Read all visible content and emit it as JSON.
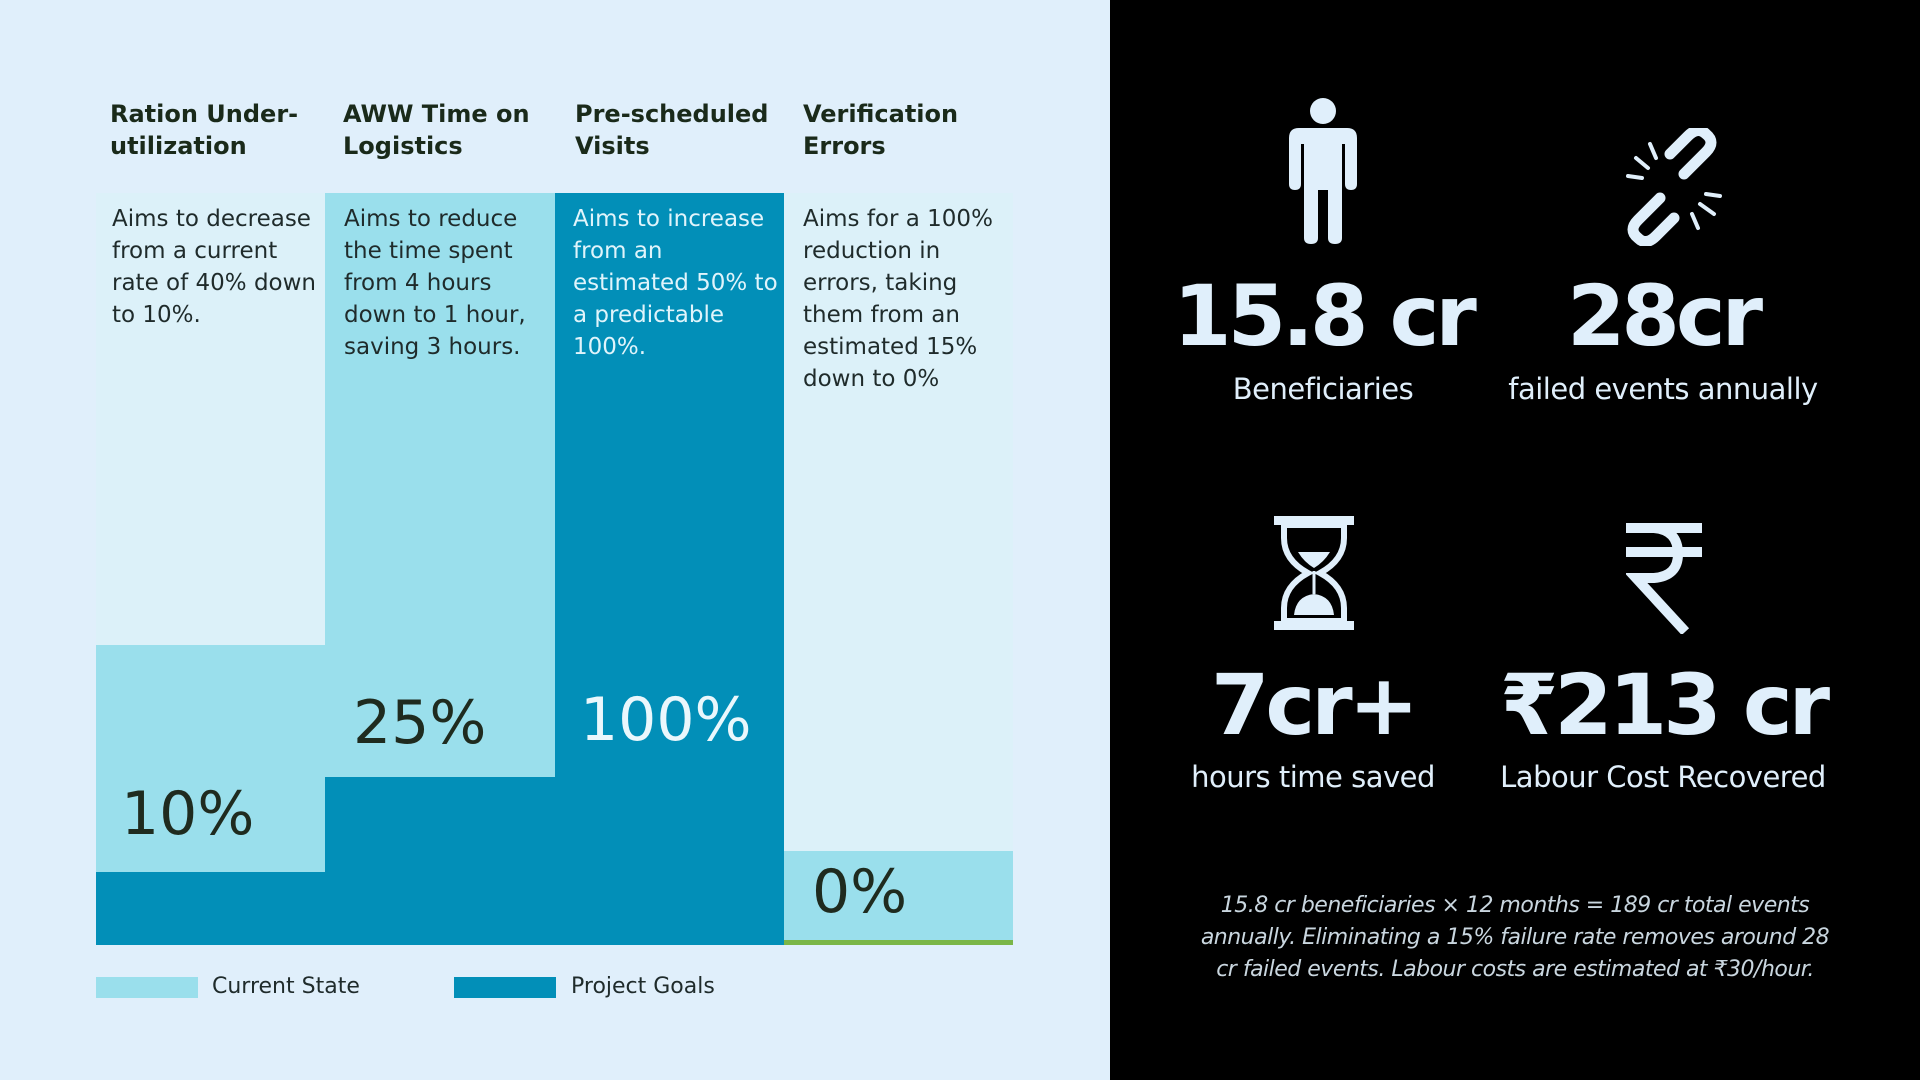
{
  "colors": {
    "current_state": "#9adfec",
    "project_goals": "#028fb8",
    "light_bg": "#dcf1f9",
    "green_line": "#7ab648",
    "dark_panel": "#000000"
  },
  "columns": [
    {
      "title": "Ration Under-\nutilization",
      "description": "Aims to decrease from a current rate of 40% down to 10%.",
      "goal_label": "10%",
      "current_value": 40,
      "goal_value": 10
    },
    {
      "title": "AWW Time on Logistics",
      "description": "Aims to reduce the time spent from 4 hours down to 1 hour, saving 3 hours.",
      "goal_label": "25%",
      "current_value": 100,
      "goal_value": 25
    },
    {
      "title": "Pre-scheduled Visits",
      "description": "Aims to increase from an estimated 50% to a predictable 100%.",
      "goal_label": "100%",
      "current_value": 50,
      "goal_value": 100
    },
    {
      "title": "Verification Errors",
      "description": "Aims for a 100% reduction in errors, taking them from an estimated 15% down to 0%",
      "goal_label": "0%",
      "current_value": 15,
      "goal_value": 0
    }
  ],
  "legend": {
    "current_state": "Current State",
    "project_goals": "Project Goals"
  },
  "stats": [
    {
      "icon": "person-icon",
      "value": "15.8 cr",
      "label": "Beneficiaries"
    },
    {
      "icon": "broken-link-icon",
      "value": "28cr",
      "label": "failed events annually"
    },
    {
      "icon": "hourglass-icon",
      "value": "7cr+",
      "label": "hours time saved"
    },
    {
      "icon": "rupee-icon",
      "value": "₹213 cr",
      "label": "Labour Cost Recovered"
    }
  ],
  "footnote": "15.8 cr beneficiaries × 12 months = 189 cr total events annually. Eliminating a 15% failure rate removes  around 28 cr failed events. Labour costs are estimated at ₹30/hour."
}
